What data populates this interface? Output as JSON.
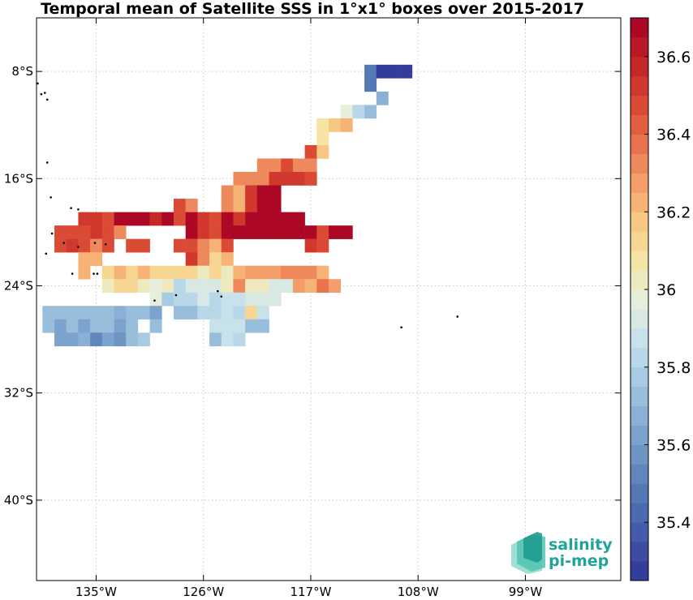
{
  "title": "Temporal mean of Satellite SSS in 1°x1° boxes over 2015-2017",
  "map": {
    "lon_range": [
      -140,
      -91
    ],
    "lat_range": [
      -46,
      -4
    ],
    "x_ticks": [
      {
        "lon": -135,
        "label": "135°W"
      },
      {
        "lon": -126,
        "label": "126°W"
      },
      {
        "lon": -117,
        "label": "117°W"
      },
      {
        "lon": -108,
        "label": "108°W"
      },
      {
        "lon": -99,
        "label": "99°W"
      }
    ],
    "y_ticks": [
      {
        "lat": -8,
        "label": "8°S"
      },
      {
        "lat": -16,
        "label": "16°S"
      },
      {
        "lat": -24,
        "label": "24°S"
      },
      {
        "lat": -32,
        "label": "32°S"
      },
      {
        "lat": -40,
        "label": "40°S"
      }
    ],
    "grid": true
  },
  "colorbar": {
    "min": 35.25,
    "max": 36.7,
    "steps": 29,
    "tick_values": [
      35.4,
      35.6,
      35.8,
      36.0,
      36.2,
      36.4,
      36.6
    ],
    "tick_labels": [
      "35.4",
      "35.6",
      "35.8",
      "36",
      "36.2",
      "36.4",
      "36.6"
    ],
    "palette": [
      "#313695",
      "#3f55a5",
      "#5173b4",
      "#6a90c2",
      "#87aed3",
      "#a6c9e2",
      "#c6e2ec",
      "#e6efd9",
      "#f6e4a4",
      "#f8c57f",
      "#f29a68",
      "#e86c4b",
      "#d8432f",
      "#c02128",
      "#a50026"
    ]
  },
  "chart_data": {
    "type": "heatmap",
    "title": "Temporal mean of Satellite SSS in 1°x1° boxes over 2015-2017",
    "xlabel": "",
    "ylabel": "",
    "x_range": [
      -140,
      -91
    ],
    "y_range": [
      -46,
      -4
    ],
    "value_range": [
      35.25,
      36.7
    ],
    "cells": [
      {
        "lon": -112,
        "lat": -8,
        "v": 35.45
      },
      {
        "lon": -111,
        "lat": -8,
        "v": 35.3
      },
      {
        "lon": -110,
        "lat": -8,
        "v": 35.3
      },
      {
        "lon": -109,
        "lat": -8,
        "v": 35.3
      },
      {
        "lon": -112,
        "lat": -9,
        "v": 35.5
      },
      {
        "lon": -111,
        "lat": -10,
        "v": 35.68
      },
      {
        "lon": -114,
        "lat": -11,
        "v": 35.95
      },
      {
        "lon": -113,
        "lat": -11,
        "v": 35.82
      },
      {
        "lon": -112,
        "lat": -11,
        "v": 35.7
      },
      {
        "lon": -116,
        "lat": -12,
        "v": 36.08
      },
      {
        "lon": -115,
        "lat": -12,
        "v": 36.18
      },
      {
        "lon": -114,
        "lat": -12,
        "v": 36.22
      },
      {
        "lon": -116,
        "lat": -13,
        "v": 36.08
      },
      {
        "lon": -117,
        "lat": -14,
        "v": 36.45
      },
      {
        "lon": -116,
        "lat": -14,
        "v": 36.18
      },
      {
        "lon": -121,
        "lat": -15,
        "v": 36.32
      },
      {
        "lon": -120,
        "lat": -15,
        "v": 36.32
      },
      {
        "lon": -119,
        "lat": -15,
        "v": 36.45
      },
      {
        "lon": -118,
        "lat": -15,
        "v": 36.32
      },
      {
        "lon": -117,
        "lat": -15,
        "v": 36.32
      },
      {
        "lon": -123,
        "lat": -16,
        "v": 36.32
      },
      {
        "lon": -122,
        "lat": -16,
        "v": 36.32
      },
      {
        "lon": -121,
        "lat": -16,
        "v": 36.32
      },
      {
        "lon": -120,
        "lat": -16,
        "v": 36.52
      },
      {
        "lon": -119,
        "lat": -16,
        "v": 36.52
      },
      {
        "lon": -118,
        "lat": -16,
        "v": 36.52
      },
      {
        "lon": -117,
        "lat": -16,
        "v": 36.45
      },
      {
        "lon": -124,
        "lat": -17,
        "v": 36.32
      },
      {
        "lon": -123,
        "lat": -17,
        "v": 36.25
      },
      {
        "lon": -122,
        "lat": -17,
        "v": 36.55
      },
      {
        "lon": -121,
        "lat": -17,
        "v": 36.66
      },
      {
        "lon": -120,
        "lat": -17,
        "v": 36.66
      },
      {
        "lon": -128,
        "lat": -18,
        "v": 36.45
      },
      {
        "lon": -127,
        "lat": -18,
        "v": 36.32
      },
      {
        "lon": -124,
        "lat": -18,
        "v": 36.32
      },
      {
        "lon": -123,
        "lat": -18,
        "v": 36.25
      },
      {
        "lon": -122,
        "lat": -18,
        "v": 36.55
      },
      {
        "lon": -121,
        "lat": -18,
        "v": 36.66
      },
      {
        "lon": -120,
        "lat": -18,
        "v": 36.66
      },
      {
        "lon": -136,
        "lat": -19,
        "v": 36.55
      },
      {
        "lon": -135,
        "lat": -19,
        "v": 36.55
      },
      {
        "lon": -134,
        "lat": -19,
        "v": 36.45
      },
      {
        "lon": -133,
        "lat": -19,
        "v": 36.66
      },
      {
        "lon": -132,
        "lat": -19,
        "v": 36.66
      },
      {
        "lon": -131,
        "lat": -19,
        "v": 36.66
      },
      {
        "lon": -130,
        "lat": -19,
        "v": 36.6
      },
      {
        "lon": -129,
        "lat": -19,
        "v": 36.66
      },
      {
        "lon": -128,
        "lat": -19,
        "v": 36.45
      },
      {
        "lon": -127,
        "lat": -19,
        "v": 36.66
      },
      {
        "lon": -126,
        "lat": -19,
        "v": 36.55
      },
      {
        "lon": -125,
        "lat": -19,
        "v": 36.45
      },
      {
        "lon": -124,
        "lat": -19,
        "v": 36.66
      },
      {
        "lon": -123,
        "lat": -19,
        "v": 36.55
      },
      {
        "lon": -122,
        "lat": -19,
        "v": 36.66
      },
      {
        "lon": -121,
        "lat": -19,
        "v": 36.66
      },
      {
        "lon": -120,
        "lat": -19,
        "v": 36.66
      },
      {
        "lon": -119,
        "lat": -19,
        "v": 36.66
      },
      {
        "lon": -118,
        "lat": -19,
        "v": 36.66
      },
      {
        "lon": -138,
        "lat": -20,
        "v": 36.45
      },
      {
        "lon": -137,
        "lat": -20,
        "v": 36.45
      },
      {
        "lon": -136,
        "lat": -20,
        "v": 36.45
      },
      {
        "lon": -135,
        "lat": -20,
        "v": 36.55
      },
      {
        "lon": -134,
        "lat": -20,
        "v": 36.45
      },
      {
        "lon": -133,
        "lat": -20,
        "v": 36.32
      },
      {
        "lon": -127,
        "lat": -20,
        "v": 36.66
      },
      {
        "lon": -126,
        "lat": -20,
        "v": 36.55
      },
      {
        "lon": -125,
        "lat": -20,
        "v": 36.45
      },
      {
        "lon": -124,
        "lat": -20,
        "v": 36.66
      },
      {
        "lon": -123,
        "lat": -20,
        "v": 36.66
      },
      {
        "lon": -122,
        "lat": -20,
        "v": 36.66
      },
      {
        "lon": -121,
        "lat": -20,
        "v": 36.66
      },
      {
        "lon": -120,
        "lat": -20,
        "v": 36.66
      },
      {
        "lon": -119,
        "lat": -20,
        "v": 36.66
      },
      {
        "lon": -118,
        "lat": -20,
        "v": 36.66
      },
      {
        "lon": -117,
        "lat": -20,
        "v": 36.66
      },
      {
        "lon": -116,
        "lat": -20,
        "v": 36.45
      },
      {
        "lon": -115,
        "lat": -20,
        "v": 36.66
      },
      {
        "lon": -114,
        "lat": -20,
        "v": 36.66
      },
      {
        "lon": -138,
        "lat": -21,
        "v": 36.45
      },
      {
        "lon": -137,
        "lat": -21,
        "v": 36.55
      },
      {
        "lon": -136,
        "lat": -21,
        "v": 36.45
      },
      {
        "lon": -135,
        "lat": -21,
        "v": 36.32
      },
      {
        "lon": -134,
        "lat": -21,
        "v": 36.45
      },
      {
        "lon": -132,
        "lat": -21,
        "v": 36.45
      },
      {
        "lon": -131,
        "lat": -21,
        "v": 36.45
      },
      {
        "lon": -128,
        "lat": -21,
        "v": 36.45
      },
      {
        "lon": -127,
        "lat": -21,
        "v": 36.45
      },
      {
        "lon": -126,
        "lat": -21,
        "v": 36.32
      },
      {
        "lon": -125,
        "lat": -21,
        "v": 36.22
      },
      {
        "lon": -124,
        "lat": -21,
        "v": 36.45
      },
      {
        "lon": -117,
        "lat": -21,
        "v": 36.55
      },
      {
        "lon": -116,
        "lat": -21,
        "v": 36.45
      },
      {
        "lon": -136,
        "lat": -22,
        "v": 36.25
      },
      {
        "lon": -135,
        "lat": -22,
        "v": 36.25
      },
      {
        "lon": -127,
        "lat": -22,
        "v": 36.55
      },
      {
        "lon": -126,
        "lat": -22,
        "v": 36.32
      },
      {
        "lon": -125,
        "lat": -22,
        "v": 36.12
      },
      {
        "lon": -124,
        "lat": -22,
        "v": 36.22
      },
      {
        "lon": -136,
        "lat": -23,
        "v": 36.25
      },
      {
        "lon": -134,
        "lat": -23,
        "v": 36.15
      },
      {
        "lon": -133,
        "lat": -23,
        "v": 36.22
      },
      {
        "lon": -132,
        "lat": -23,
        "v": 36.15
      },
      {
        "lon": -131,
        "lat": -23,
        "v": 36.25
      },
      {
        "lon": -130,
        "lat": -23,
        "v": 36.15
      },
      {
        "lon": -129,
        "lat": -23,
        "v": 36.15
      },
      {
        "lon": -128,
        "lat": -23,
        "v": 36.15
      },
      {
        "lon": -127,
        "lat": -23,
        "v": 36.15
      },
      {
        "lon": -126,
        "lat": -23,
        "v": 36.05
      },
      {
        "lon": -125,
        "lat": -23,
        "v": 36.12
      },
      {
        "lon": -124,
        "lat": -23,
        "v": 36.05
      },
      {
        "lon": -123,
        "lat": -23,
        "v": 36.22
      },
      {
        "lon": -122,
        "lat": -23,
        "v": 36.28
      },
      {
        "lon": -121,
        "lat": -23,
        "v": 36.28
      },
      {
        "lon": -120,
        "lat": -23,
        "v": 36.28
      },
      {
        "lon": -119,
        "lat": -23,
        "v": 36.35
      },
      {
        "lon": -118,
        "lat": -23,
        "v": 36.35
      },
      {
        "lon": -117,
        "lat": -23,
        "v": 36.35
      },
      {
        "lon": -116,
        "lat": -23,
        "v": 36.22
      },
      {
        "lon": -134,
        "lat": -24,
        "v": 36.03
      },
      {
        "lon": -133,
        "lat": -24,
        "v": 36.12
      },
      {
        "lon": -132,
        "lat": -24,
        "v": 36.12
      },
      {
        "lon": -131,
        "lat": -24,
        "v": 36.05
      },
      {
        "lon": -130,
        "lat": -24,
        "v": 35.98
      },
      {
        "lon": -129,
        "lat": -24,
        "v": 36.05
      },
      {
        "lon": -128,
        "lat": -24,
        "v": 35.82
      },
      {
        "lon": -127,
        "lat": -24,
        "v": 35.93
      },
      {
        "lon": -126,
        "lat": -24,
        "v": 35.93
      },
      {
        "lon": -125,
        "lat": -24,
        "v": 35.93
      },
      {
        "lon": -124,
        "lat": -24,
        "v": 36.03
      },
      {
        "lon": -123,
        "lat": -24,
        "v": 36.32
      },
      {
        "lon": -122,
        "lat": -24,
        "v": 36.03
      },
      {
        "lon": -121,
        "lat": -24,
        "v": 36.05
      },
      {
        "lon": -120,
        "lat": -24,
        "v": 35.93
      },
      {
        "lon": -119,
        "lat": -24,
        "v": 35.93
      },
      {
        "lon": -118,
        "lat": -24,
        "v": 36.28
      },
      {
        "lon": -117,
        "lat": -24,
        "v": 36.22
      },
      {
        "lon": -116,
        "lat": -24,
        "v": 36.38
      },
      {
        "lon": -115,
        "lat": -24,
        "v": 36.28
      },
      {
        "lon": -130,
        "lat": -25,
        "v": 36.0
      },
      {
        "lon": -129,
        "lat": -25,
        "v": 35.8
      },
      {
        "lon": -128,
        "lat": -25,
        "v": 35.82
      },
      {
        "lon": -127,
        "lat": -25,
        "v": 35.82
      },
      {
        "lon": -126,
        "lat": -25,
        "v": 35.93
      },
      {
        "lon": -125,
        "lat": -25,
        "v": 35.82
      },
      {
        "lon": -124,
        "lat": -25,
        "v": 35.9
      },
      {
        "lon": -123,
        "lat": -25,
        "v": 35.9
      },
      {
        "lon": -122,
        "lat": -25,
        "v": 35.93
      },
      {
        "lon": -121,
        "lat": -25,
        "v": 35.93
      },
      {
        "lon": -120,
        "lat": -25,
        "v": 35.93
      },
      {
        "lon": -139,
        "lat": -26,
        "v": 35.72
      },
      {
        "lon": -138,
        "lat": -26,
        "v": 35.7
      },
      {
        "lon": -137,
        "lat": -26,
        "v": 35.72
      },
      {
        "lon": -136,
        "lat": -26,
        "v": 35.7
      },
      {
        "lon": -135,
        "lat": -26,
        "v": 35.72
      },
      {
        "lon": -134,
        "lat": -26,
        "v": 35.72
      },
      {
        "lon": -133,
        "lat": -26,
        "v": 35.68
      },
      {
        "lon": -132,
        "lat": -26,
        "v": 35.75
      },
      {
        "lon": -131,
        "lat": -26,
        "v": 35.72
      },
      {
        "lon": -130,
        "lat": -26,
        "v": 35.65
      },
      {
        "lon": -128,
        "lat": -26,
        "v": 35.75
      },
      {
        "lon": -127,
        "lat": -26,
        "v": 35.75
      },
      {
        "lon": -126,
        "lat": -26,
        "v": 35.82
      },
      {
        "lon": -125,
        "lat": -26,
        "v": 35.82
      },
      {
        "lon": -124,
        "lat": -26,
        "v": 35.85
      },
      {
        "lon": -123,
        "lat": -26,
        "v": 35.82
      },
      {
        "lon": -122,
        "lat": -26,
        "v": 36.15
      },
      {
        "lon": -121,
        "lat": -26,
        "v": 35.9
      },
      {
        "lon": -139,
        "lat": -27,
        "v": 35.75
      },
      {
        "lon": -138,
        "lat": -27,
        "v": 35.62
      },
      {
        "lon": -137,
        "lat": -27,
        "v": 35.7
      },
      {
        "lon": -136,
        "lat": -27,
        "v": 35.65
      },
      {
        "lon": -135,
        "lat": -27,
        "v": 35.72
      },
      {
        "lon": -134,
        "lat": -27,
        "v": 35.7
      },
      {
        "lon": -133,
        "lat": -27,
        "v": 35.65
      },
      {
        "lon": -132,
        "lat": -27,
        "v": 35.75
      },
      {
        "lon": -130,
        "lat": -27,
        "v": 35.72
      },
      {
        "lon": -125,
        "lat": -27,
        "v": 35.85
      },
      {
        "lon": -124,
        "lat": -27,
        "v": 35.85
      },
      {
        "lon": -123,
        "lat": -27,
        "v": 35.85
      },
      {
        "lon": -122,
        "lat": -27,
        "v": 35.72
      },
      {
        "lon": -121,
        "lat": -27,
        "v": 35.72
      },
      {
        "lon": -138,
        "lat": -28,
        "v": 35.62
      },
      {
        "lon": -137,
        "lat": -28,
        "v": 35.62
      },
      {
        "lon": -136,
        "lat": -28,
        "v": 35.68
      },
      {
        "lon": -135,
        "lat": -28,
        "v": 35.55
      },
      {
        "lon": -134,
        "lat": -28,
        "v": 35.65
      },
      {
        "lon": -133,
        "lat": -28,
        "v": 35.58
      },
      {
        "lon": -132,
        "lat": -28,
        "v": 35.7
      },
      {
        "lon": -131,
        "lat": -28,
        "v": 35.78
      },
      {
        "lon": -125,
        "lat": -28,
        "v": 35.75
      },
      {
        "lon": -124,
        "lat": -28,
        "v": 35.85
      },
      {
        "lon": -123,
        "lat": -28,
        "v": 35.82
      }
    ],
    "islands": [
      {
        "lon": -139.9,
        "lat": -8.9
      },
      {
        "lon": -139.6,
        "lat": -9.7
      },
      {
        "lon": -139.3,
        "lat": -9.6
      },
      {
        "lon": -139.1,
        "lat": -10.1
      },
      {
        "lon": -139.1,
        "lat": -14.8
      },
      {
        "lon": -138.8,
        "lat": -17.4
      },
      {
        "lon": -137.1,
        "lat": -18.2
      },
      {
        "lon": -136.5,
        "lat": -18.3
      },
      {
        "lon": -138.7,
        "lat": -20.1
      },
      {
        "lon": -137.7,
        "lat": -20.8
      },
      {
        "lon": -136.5,
        "lat": -21.1
      },
      {
        "lon": -135.1,
        "lat": -20.8
      },
      {
        "lon": -134.2,
        "lat": -20.9
      },
      {
        "lon": -139.2,
        "lat": -21.6
      },
      {
        "lon": -135.2,
        "lat": -23.1
      },
      {
        "lon": -134.9,
        "lat": -23.1
      },
      {
        "lon": -137.0,
        "lat": -23.1
      },
      {
        "lon": -130.1,
        "lat": -25.1
      },
      {
        "lon": -128.3,
        "lat": -24.7
      },
      {
        "lon": -124.8,
        "lat": -24.4
      },
      {
        "lon": -124.5,
        "lat": -24.8
      },
      {
        "lon": -109.4,
        "lat": -27.1
      },
      {
        "lon": -104.7,
        "lat": -26.3
      }
    ]
  },
  "logo": {
    "line1": "salinity",
    "line2": "pi-mep",
    "color": "#21a39a"
  }
}
